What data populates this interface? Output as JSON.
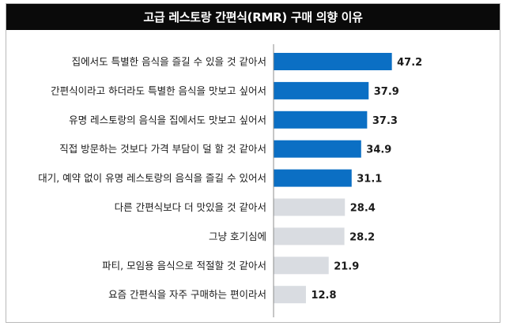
{
  "chart_data": {
    "type": "bar",
    "orientation": "horizontal",
    "title": "고급 레스토랑 간편식(RMR) 구매 의향 이유",
    "xlabel": "",
    "ylabel": "",
    "xlim": [
      0,
      50
    ],
    "grid": false,
    "legend": "none",
    "categories": [
      "집에서도 특별한 음식을 즐길 수 있을 것 같아서",
      "간편식이라고 하더라도 특별한 음식을 맛보고 싶어서",
      "유명 레스토랑의 음식을 집에서도 맛보고 싶어서",
      "직접 방문하는 것보다 가격 부담이 덜 할 것 같아서",
      "대기, 예약 없이 유명 레스토랑의 음식을 즐길 수 있어서",
      "다른 간편식보다 더 맛있을 것 같아서",
      "그냥 호기심에",
      "파티, 모임용 음식으로 적절할 것 같아서",
      "요즘 간편식을 자주 구매하는 편이라서"
    ],
    "values": [
      47.2,
      37.9,
      37.3,
      34.9,
      31.1,
      28.4,
      28.2,
      21.9,
      12.8
    ],
    "value_labels": [
      "47.2",
      "37.9",
      "37.3",
      "34.9",
      "31.1",
      "28.4",
      "28.2",
      "21.9",
      "12.8"
    ],
    "colors": {
      "highlight": "#0b6fc4",
      "muted": "#d9dce1",
      "axis": "#8c8c8c",
      "title_bg": "#0a0a0a",
      "title_text": "#ffffff"
    },
    "highlight_count": 5
  }
}
